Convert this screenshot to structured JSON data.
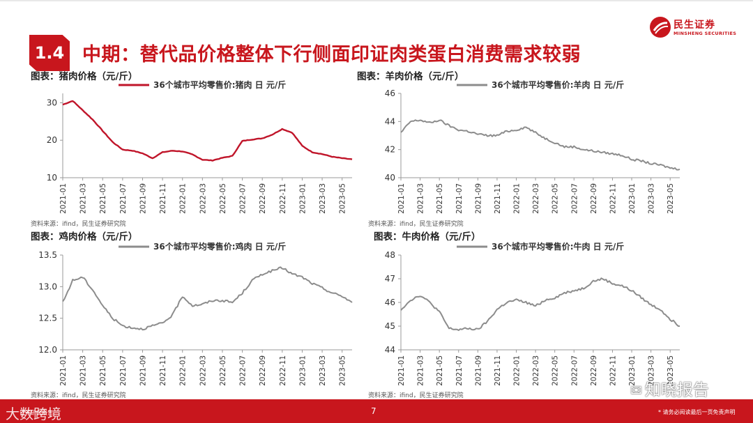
{
  "brand": {
    "name_cn": "民生证券",
    "name_en": "MINSHENG SECURITIES"
  },
  "header": {
    "section_number": "1.4",
    "title": "中期：替代品价格整体下行侧面印证肉类蛋白消费需求较弱"
  },
  "colors": {
    "brand_red": "#c8161d",
    "series_red": "#c0152a",
    "series_gray": "#8c8c8c"
  },
  "charts": [
    {
      "id": "pork",
      "caption": "图表：猪肉价格（元/斤）",
      "source": "资料来源：ifind，民生证券研究院"
    },
    {
      "id": "mutton",
      "caption": "图表：羊肉价格（元/斤）",
      "source": "资料来源：ifind，民生证券研究院"
    },
    {
      "id": "chicken",
      "caption": "图表：鸡肉价格（元/斤）",
      "source": "资料来源：ifind，民生证券研究院"
    },
    {
      "id": "beef",
      "caption": "图表：牛肉价格（元/斤）",
      "source": "资料来源：ifind，民生证券研究院"
    }
  ],
  "chart_data": [
    {
      "type": "line",
      "id": "pork",
      "series": [
        {
          "name": "36个城市平均零售价:猪肉 日 元/斤",
          "color": "#c0152a",
          "x": [
            "2021-01",
            "2021-02",
            "2021-03",
            "2021-04",
            "2021-05",
            "2021-06",
            "2021-07",
            "2021-08",
            "2021-09",
            "2021-10",
            "2021-11",
            "2021-12",
            "2022-01",
            "2022-02",
            "2022-03",
            "2022-04",
            "2022-05",
            "2022-06",
            "2022-07",
            "2022-08",
            "2022-09",
            "2022-10",
            "2022-11",
            "2022-12",
            "2023-01",
            "2023-02",
            "2023-03",
            "2023-04",
            "2023-05",
            "2023-06"
          ],
          "values": [
            29.5,
            30.5,
            28,
            25.5,
            22.5,
            19.5,
            17.5,
            17.2,
            16.5,
            15.2,
            16.8,
            17.2,
            17.0,
            16.2,
            14.8,
            14.6,
            15.3,
            15.8,
            19.8,
            20.2,
            20.5,
            21.5,
            23.0,
            22.0,
            18.5,
            16.8,
            16.3,
            15.6,
            15.2,
            14.9
          ]
        }
      ],
      "yticks": [
        10,
        20,
        30
      ],
      "ylim": [
        10,
        32.5
      ],
      "xticks": [
        "2021-01",
        "2021-03",
        "2021-05",
        "2021-07",
        "2021-09",
        "2021-11",
        "2022-01",
        "2022-03",
        "2022-05",
        "2022-07",
        "2022-09",
        "2022-11",
        "2023-01",
        "2023-03",
        "2023-05"
      ]
    },
    {
      "type": "line",
      "id": "mutton",
      "series": [
        {
          "name": "36个城市平均零售价:羊肉 日 元/斤",
          "color": "#8c8c8c",
          "x": [
            "2021-01",
            "2021-02",
            "2021-03",
            "2021-04",
            "2021-05",
            "2021-06",
            "2021-07",
            "2021-08",
            "2021-09",
            "2021-10",
            "2021-11",
            "2021-12",
            "2022-01",
            "2022-02",
            "2022-03",
            "2022-04",
            "2022-05",
            "2022-06",
            "2022-07",
            "2022-08",
            "2022-09",
            "2022-10",
            "2022-11",
            "2022-12",
            "2023-01",
            "2023-02",
            "2023-03",
            "2023-04",
            "2023-05",
            "2023-06"
          ],
          "values": [
            43.2,
            44.0,
            44.1,
            43.9,
            44.1,
            43.7,
            43.4,
            43.3,
            43.1,
            43.0,
            43.0,
            43.3,
            43.4,
            43.6,
            43.2,
            42.8,
            42.5,
            42.2,
            42.2,
            42.0,
            41.9,
            41.8,
            41.7,
            41.6,
            41.3,
            41.2,
            41.0,
            40.9,
            40.7,
            40.6
          ]
        }
      ],
      "yticks": [
        40,
        42,
        44,
        46
      ],
      "ylim": [
        40,
        46
      ],
      "xticks": [
        "2021-01",
        "2021-03",
        "2021-05",
        "2021-07",
        "2021-09",
        "2021-11",
        "2022-01",
        "2022-03",
        "2022-05",
        "2022-07",
        "2022-09",
        "2022-11",
        "2023-01",
        "2023-03",
        "2023-05"
      ]
    },
    {
      "type": "line",
      "id": "chicken",
      "series": [
        {
          "name": "36个城市平均零售价:鸡肉 日 元/斤",
          "color": "#8c8c8c",
          "x": [
            "2021-01",
            "2021-02",
            "2021-03",
            "2021-04",
            "2021-05",
            "2021-06",
            "2021-07",
            "2021-08",
            "2021-09",
            "2021-10",
            "2021-11",
            "2021-12",
            "2022-01",
            "2022-02",
            "2022-03",
            "2022-04",
            "2022-05",
            "2022-06",
            "2022-07",
            "2022-08",
            "2022-09",
            "2022-10",
            "2022-11",
            "2022-12",
            "2023-01",
            "2023-02",
            "2023-03",
            "2023-04",
            "2023-05",
            "2023-06"
          ],
          "values": [
            12.75,
            13.1,
            13.15,
            12.95,
            12.7,
            12.5,
            12.38,
            12.35,
            12.33,
            12.38,
            12.42,
            12.55,
            12.85,
            12.7,
            12.72,
            12.78,
            12.78,
            12.75,
            12.9,
            13.1,
            13.2,
            13.25,
            13.3,
            13.2,
            13.15,
            13.05,
            12.98,
            12.9,
            12.85,
            12.75
          ]
        }
      ],
      "yticks": [
        12.0,
        12.5,
        13.0,
        13.5
      ],
      "ylim": [
        12,
        13.5
      ],
      "xticks": [
        "2021-01",
        "2021-03",
        "2021-05",
        "2021-07",
        "2021-09",
        "2021-11",
        "2022-01",
        "2022-03",
        "2022-05",
        "2022-07",
        "2022-09",
        "2022-11",
        "2023-01",
        "2023-03",
        "2023-05"
      ]
    },
    {
      "type": "line",
      "id": "beef",
      "series": [
        {
          "name": "36个城市平均零售价:牛肉 日 元/斤",
          "color": "#8c8c8c",
          "x": [
            "2021-01",
            "2021-02",
            "2021-03",
            "2021-04",
            "2021-05",
            "2021-06",
            "2021-07",
            "2021-08",
            "2021-09",
            "2021-10",
            "2021-11",
            "2021-12",
            "2022-01",
            "2022-02",
            "2022-03",
            "2022-04",
            "2022-05",
            "2022-06",
            "2022-07",
            "2022-08",
            "2022-09",
            "2022-10",
            "2022-11",
            "2022-12",
            "2023-01",
            "2023-02",
            "2023-03",
            "2023-04",
            "2023-05",
            "2023-06"
          ],
          "values": [
            45.7,
            46.1,
            46.3,
            46.0,
            45.6,
            44.9,
            44.85,
            44.9,
            44.85,
            45.2,
            45.7,
            46.0,
            46.1,
            46.0,
            45.85,
            46.1,
            46.2,
            46.4,
            46.5,
            46.6,
            46.9,
            47.0,
            46.8,
            46.7,
            46.5,
            46.2,
            45.9,
            45.7,
            45.3,
            45.0
          ]
        }
      ],
      "yticks": [
        44,
        45,
        46,
        47,
        48
      ],
      "ylim": [
        44,
        48
      ],
      "xticks": [
        "2021-01",
        "2021-03",
        "2021-05",
        "2021-07",
        "2021-09",
        "2021-11",
        "2022-01",
        "2022-03",
        "2022-05",
        "2022-07",
        "2022-09",
        "2022-11",
        "2023-01",
        "2023-03",
        "2023-05"
      ]
    }
  ],
  "footer": {
    "page_number": "7",
    "disclaimer": "* 请务必阅读最后一页免责声明"
  },
  "watermarks": {
    "left": "大数跨境",
    "left_small": "证券研究报告",
    "right": "知晓报告",
    "right_icon": "wechat-icon"
  }
}
